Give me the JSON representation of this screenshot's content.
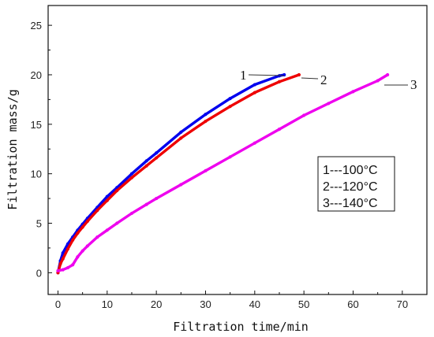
{
  "chart_data": {
    "type": "line",
    "xlabel": "Filtration time/min",
    "ylabel": "Filtration mass/g",
    "xlim": [
      -2,
      75
    ],
    "ylim": [
      -2.2,
      27
    ],
    "xticks": [
      0,
      10,
      20,
      30,
      40,
      50,
      60,
      70
    ],
    "yticks": [
      0,
      5,
      10,
      15,
      20,
      25
    ],
    "grid": false,
    "legend_position": "right",
    "legend": [
      "1---100°C",
      "2---120°C",
      "3---140°C"
    ],
    "series": [
      {
        "name": "1",
        "color": "#0000ee",
        "x": [
          0,
          0.5,
          1,
          2,
          3,
          4,
          5,
          6,
          8,
          10,
          12,
          15,
          18,
          20,
          25,
          30,
          35,
          40,
          45,
          46
        ],
        "y": [
          0,
          1.2,
          2.0,
          2.9,
          3.6,
          4.3,
          4.9,
          5.5,
          6.6,
          7.7,
          8.6,
          10.0,
          11.3,
          12.1,
          14.2,
          16.0,
          17.6,
          19.0,
          19.9,
          20.0
        ]
      },
      {
        "name": "2",
        "color": "#ee0000",
        "x": [
          0,
          0.5,
          1,
          2,
          3,
          4,
          5,
          6,
          8,
          10,
          12,
          15,
          18,
          20,
          25,
          30,
          35,
          40,
          45,
          49
        ],
        "y": [
          0,
          0.9,
          1.4,
          2.4,
          3.3,
          4.0,
          4.6,
          5.2,
          6.3,
          7.3,
          8.3,
          9.6,
          10.8,
          11.6,
          13.6,
          15.3,
          16.8,
          18.2,
          19.3,
          20.0
        ]
      },
      {
        "name": "3",
        "color": "#ee00ee",
        "x": [
          0,
          1,
          2,
          3,
          4,
          5,
          6,
          8,
          10,
          12,
          15,
          18,
          20,
          25,
          30,
          35,
          40,
          45,
          50,
          55,
          60,
          65,
          67
        ],
        "y": [
          0.2,
          0.3,
          0.5,
          0.8,
          1.6,
          2.2,
          2.7,
          3.6,
          4.3,
          5.0,
          6.0,
          6.9,
          7.5,
          8.9,
          10.3,
          11.7,
          13.1,
          14.5,
          15.9,
          17.1,
          18.3,
          19.4,
          20.0
        ]
      }
    ]
  }
}
